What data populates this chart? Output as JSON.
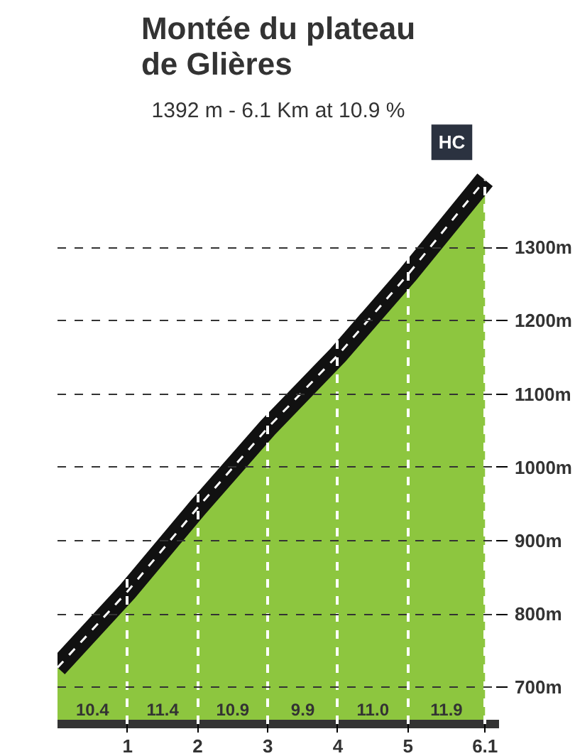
{
  "chart_data": {
    "type": "area",
    "title": "Montée du plateau\nde Glières",
    "subtitle": "1392 m - 6.1 Km at 10.9 %",
    "x": [
      0,
      1,
      2,
      3,
      4,
      5,
      6.1
    ],
    "series": [
      {
        "color": "#8dc63f",
        "values": [
          727,
          831,
          945,
          1054,
          1153,
          1263,
          1392
        ]
      }
    ],
    "xlim": [
      0,
      6.3
    ],
    "xticks": [
      1,
      2,
      3,
      4,
      5,
      6.1
    ],
    "ylim": [
      650,
      1460
    ],
    "yticks": [
      {
        "value": 700,
        "label": "700m"
      },
      {
        "value": 800,
        "label": "800m"
      },
      {
        "value": 900,
        "label": "900m"
      },
      {
        "value": 1000,
        "label": "1000m"
      },
      {
        "value": 1100,
        "label": "1100m"
      },
      {
        "value": 1200,
        "label": "1200m"
      },
      {
        "value": 1300,
        "label": "1300m"
      }
    ],
    "grid": true,
    "line_style": "dashed",
    "annotations": [
      "10.4",
      "11.4",
      "10.9",
      "9.9",
      "11.0",
      "11.9",
      {
        "text": "HC",
        "x": 6.1,
        "y": 1392
      }
    ]
  }
}
